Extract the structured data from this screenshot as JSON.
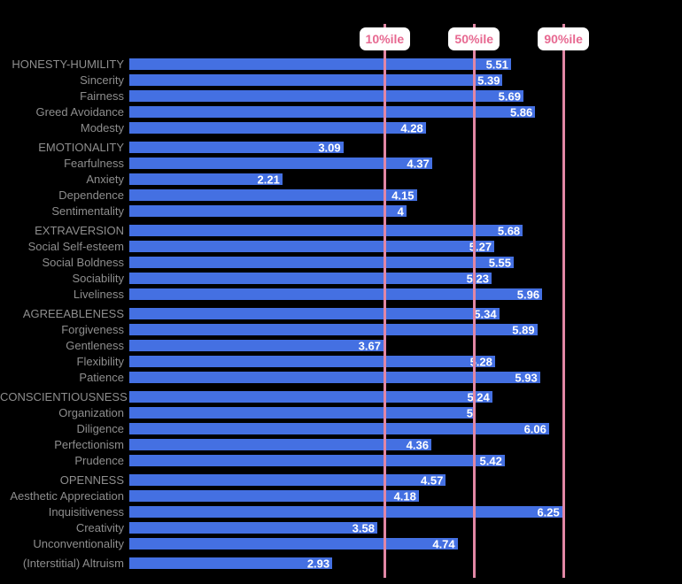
{
  "colors": {
    "background": "#000000",
    "bar": "#4470e2",
    "reference_line": "#e187a5",
    "percentile_label_text": "#e76991",
    "percentile_label_bg": "#ffffff",
    "trait_label_text": "#8e8e8e",
    "value_text": "#ffffff"
  },
  "chart_data": {
    "type": "bar",
    "orientation": "horizontal",
    "value_axis_range": [
      0,
      7
    ],
    "grid": false,
    "legend": false,
    "reference_lines": [
      {
        "label": "10%ile",
        "value": 3.69
      },
      {
        "label": "50%ile",
        "value": 4.98
      },
      {
        "label": "90%ile",
        "value": 6.27
      }
    ],
    "sections": [
      {
        "rows": [
          {
            "label": "HONESTY-HUMILITY",
            "value": 5.51
          },
          {
            "label": "Sincerity",
            "value": 5.39
          },
          {
            "label": "Fairness",
            "value": 5.69
          },
          {
            "label": "Greed Avoidance",
            "value": 5.86
          },
          {
            "label": "Modesty",
            "value": 4.28
          }
        ]
      },
      {
        "rows": [
          {
            "label": "EMOTIONALITY",
            "value": 3.09
          },
          {
            "label": "Fearfulness",
            "value": 4.37
          },
          {
            "label": "Anxiety",
            "value": 2.21
          },
          {
            "label": "Dependence",
            "value": 4.15
          },
          {
            "label": "Sentimentality",
            "value": 4
          }
        ]
      },
      {
        "rows": [
          {
            "label": "EXTRAVERSION",
            "value": 5.68
          },
          {
            "label": "Social Self-esteem",
            "value": 5.27
          },
          {
            "label": "Social Boldness",
            "value": 5.55
          },
          {
            "label": "Sociability",
            "value": 5.23
          },
          {
            "label": "Liveliness",
            "value": 5.96
          }
        ]
      },
      {
        "rows": [
          {
            "label": "AGREEABLENESS",
            "value": 5.34
          },
          {
            "label": "Forgiveness",
            "value": 5.89
          },
          {
            "label": "Gentleness",
            "value": 3.67
          },
          {
            "label": "Flexibility",
            "value": 5.28
          },
          {
            "label": "Patience",
            "value": 5.93
          }
        ]
      },
      {
        "rows": [
          {
            "label": "CONSCIENTIOUSNESS",
            "value": 5.24
          },
          {
            "label": "Organization",
            "value": 5
          },
          {
            "label": "Diligence",
            "value": 6.06
          },
          {
            "label": "Perfectionism",
            "value": 4.36
          },
          {
            "label": "Prudence",
            "value": 5.42
          }
        ]
      },
      {
        "rows": [
          {
            "label": "OPENNESS",
            "value": 4.57
          },
          {
            "label": "Aesthetic Appreciation",
            "value": 4.18
          },
          {
            "label": "Inquisitiveness",
            "value": 6.25
          },
          {
            "label": "Creativity",
            "value": 3.58
          },
          {
            "label": "Unconventionality",
            "value": 4.74
          }
        ]
      },
      {
        "rows": [
          {
            "label": "(Interstitial) Altruism",
            "value": 2.93
          }
        ]
      }
    ]
  }
}
